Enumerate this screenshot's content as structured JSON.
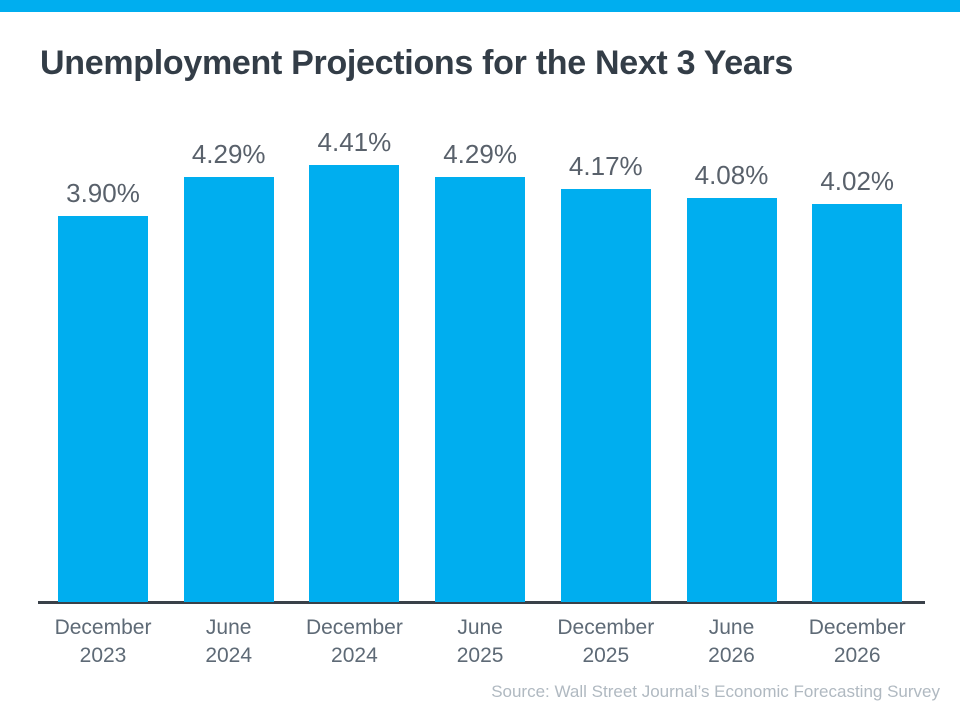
{
  "header": {
    "title": "Unemployment Projections for the Next 3 Years"
  },
  "footer": {
    "source_note": "Source: Wall Street Journal’s Economic Forecasting Survey"
  },
  "colors": {
    "accent_stripe": "#00AEEF",
    "bar": "#00AEEF",
    "title_text": "#333D47",
    "value_label": "#59616B",
    "tick_label": "#5E6A76",
    "axis_line": "#3A4149",
    "source_text": "#B0B9C1"
  },
  "chart_data": {
    "type": "bar",
    "title": "Unemployment Projections for the Next 3 Years",
    "categories": [
      "December 2023",
      "June 2024",
      "December 2024",
      "June 2025",
      "December 2025",
      "June 2026",
      "December 2026"
    ],
    "values": [
      3.9,
      4.29,
      4.41,
      4.29,
      4.17,
      4.08,
      4.02
    ],
    "value_labels": [
      "3.90%",
      "4.29%",
      "4.41%",
      "4.29%",
      "4.17%",
      "4.08%",
      "4.02%"
    ],
    "xlabel": "",
    "ylabel": "",
    "ylim": [
      0,
      4.41
    ],
    "grid": false,
    "legend": false,
    "annotation": "Source: Wall Street Journal’s Economic Forecasting Survey"
  }
}
